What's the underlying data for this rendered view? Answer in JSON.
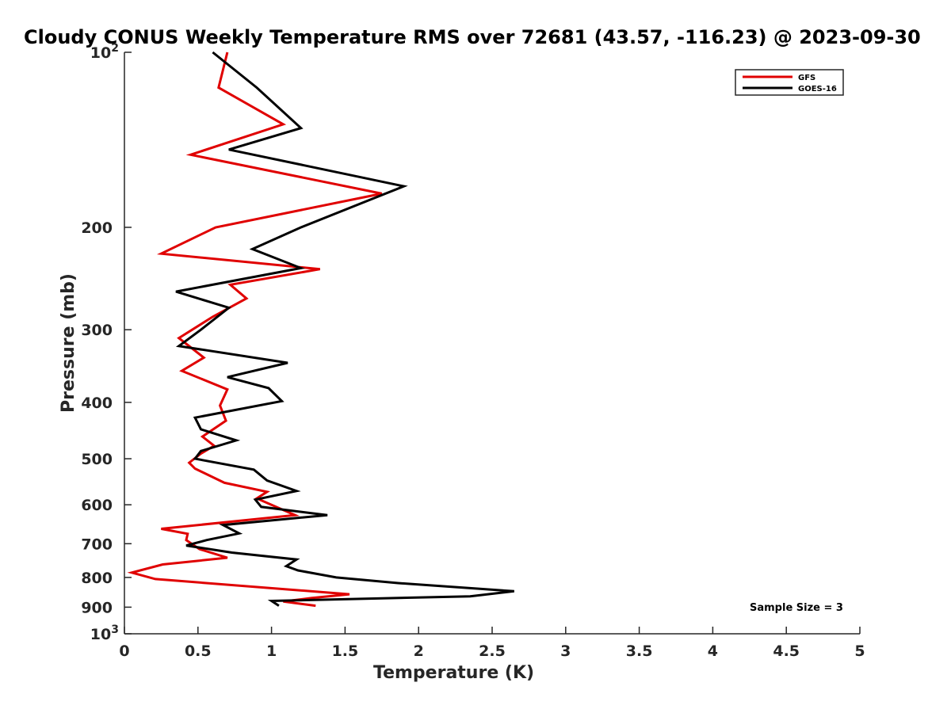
{
  "chart_data": {
    "type": "line",
    "title": "Cloudy CONUS Weekly Temperature RMS over 72681 (43.57, -116.23) @ 2023-09-30",
    "xlabel": "Temperature (K)",
    "ylabel": "Pressure (mb)",
    "xlim": [
      0,
      5
    ],
    "ylim": [
      100,
      1000
    ],
    "y_scale": "log",
    "y_reversed": true,
    "grid": false,
    "legend_position": "top-right",
    "x_ticks": [
      {
        "value": 0,
        "label": "0"
      },
      {
        "value": 0.5,
        "label": "0.5"
      },
      {
        "value": 1,
        "label": "1"
      },
      {
        "value": 1.5,
        "label": "1.5"
      },
      {
        "value": 2,
        "label": "2"
      },
      {
        "value": 2.5,
        "label": "2.5"
      },
      {
        "value": 3,
        "label": "3"
      },
      {
        "value": 3.5,
        "label": "3.5"
      },
      {
        "value": 4,
        "label": "4"
      },
      {
        "value": 4.5,
        "label": "4.5"
      },
      {
        "value": 5,
        "label": "5"
      }
    ],
    "y_ticks": [
      {
        "value": 100,
        "base": "10",
        "exp": "2"
      },
      {
        "value": 200,
        "label": "200"
      },
      {
        "value": 300,
        "label": "300"
      },
      {
        "value": 400,
        "label": "400"
      },
      {
        "value": 500,
        "label": "500"
      },
      {
        "value": 600,
        "label": "600"
      },
      {
        "value": 700,
        "label": "700"
      },
      {
        "value": 800,
        "label": "800"
      },
      {
        "value": 900,
        "label": "900"
      },
      {
        "value": 1000,
        "base": "10",
        "exp": "3"
      }
    ],
    "series": [
      {
        "name": "GFS",
        "color": "#e00000",
        "points": [
          [
            0.7,
            100
          ],
          [
            0.64,
            115
          ],
          [
            1.08,
            133
          ],
          [
            0.45,
            150
          ],
          [
            1.75,
            175
          ],
          [
            0.62,
            200
          ],
          [
            0.25,
            222
          ],
          [
            1.33,
            236
          ],
          [
            0.72,
            251
          ],
          [
            0.83,
            265
          ],
          [
            0.6,
            285
          ],
          [
            0.37,
            310
          ],
          [
            0.54,
            335
          ],
          [
            0.39,
            353
          ],
          [
            0.7,
            380
          ],
          [
            0.65,
            405
          ],
          [
            0.69,
            430
          ],
          [
            0.53,
            458
          ],
          [
            0.61,
            475
          ],
          [
            0.52,
            490
          ],
          [
            0.44,
            508
          ],
          [
            0.48,
            520
          ],
          [
            0.68,
            550
          ],
          [
            0.97,
            570
          ],
          [
            0.9,
            585
          ],
          [
            1.0,
            600
          ],
          [
            1.16,
            625
          ],
          [
            0.25,
            660
          ],
          [
            0.43,
            673
          ],
          [
            0.42,
            690
          ],
          [
            0.51,
            715
          ],
          [
            0.7,
            740
          ],
          [
            0.26,
            760
          ],
          [
            0.05,
            785
          ],
          [
            0.21,
            805
          ],
          [
            1.53,
            855
          ],
          [
            1.27,
            868
          ],
          [
            1.08,
            880
          ],
          [
            1.3,
            895
          ]
        ]
      },
      {
        "name": "GOES-16",
        "color": "#000000",
        "points": [
          [
            0.6,
            100
          ],
          [
            0.9,
            115
          ],
          [
            1.2,
            135
          ],
          [
            0.71,
            147
          ],
          [
            1.9,
            170
          ],
          [
            1.2,
            200
          ],
          [
            0.87,
            218
          ],
          [
            1.2,
            235
          ],
          [
            0.35,
            258
          ],
          [
            0.71,
            275
          ],
          [
            0.52,
            300
          ],
          [
            0.37,
            320
          ],
          [
            1.11,
            342
          ],
          [
            0.7,
            362
          ],
          [
            0.98,
            378
          ],
          [
            1.07,
            398
          ],
          [
            0.48,
            425
          ],
          [
            0.52,
            445
          ],
          [
            0.76,
            465
          ],
          [
            0.52,
            485
          ],
          [
            0.48,
            500
          ],
          [
            0.88,
            522
          ],
          [
            0.97,
            545
          ],
          [
            1.17,
            568
          ],
          [
            0.89,
            588
          ],
          [
            0.93,
            605
          ],
          [
            1.38,
            625
          ],
          [
            0.67,
            650
          ],
          [
            0.78,
            672
          ],
          [
            0.56,
            690
          ],
          [
            0.42,
            705
          ],
          [
            0.73,
            725
          ],
          [
            1.17,
            745
          ],
          [
            1.1,
            765
          ],
          [
            1.18,
            778
          ],
          [
            1.44,
            800
          ],
          [
            1.86,
            818
          ],
          [
            2.65,
            845
          ],
          [
            2.35,
            862
          ],
          [
            1.0,
            878
          ],
          [
            1.05,
            895
          ]
        ]
      }
    ],
    "annotation": "Sample Size = 3"
  }
}
